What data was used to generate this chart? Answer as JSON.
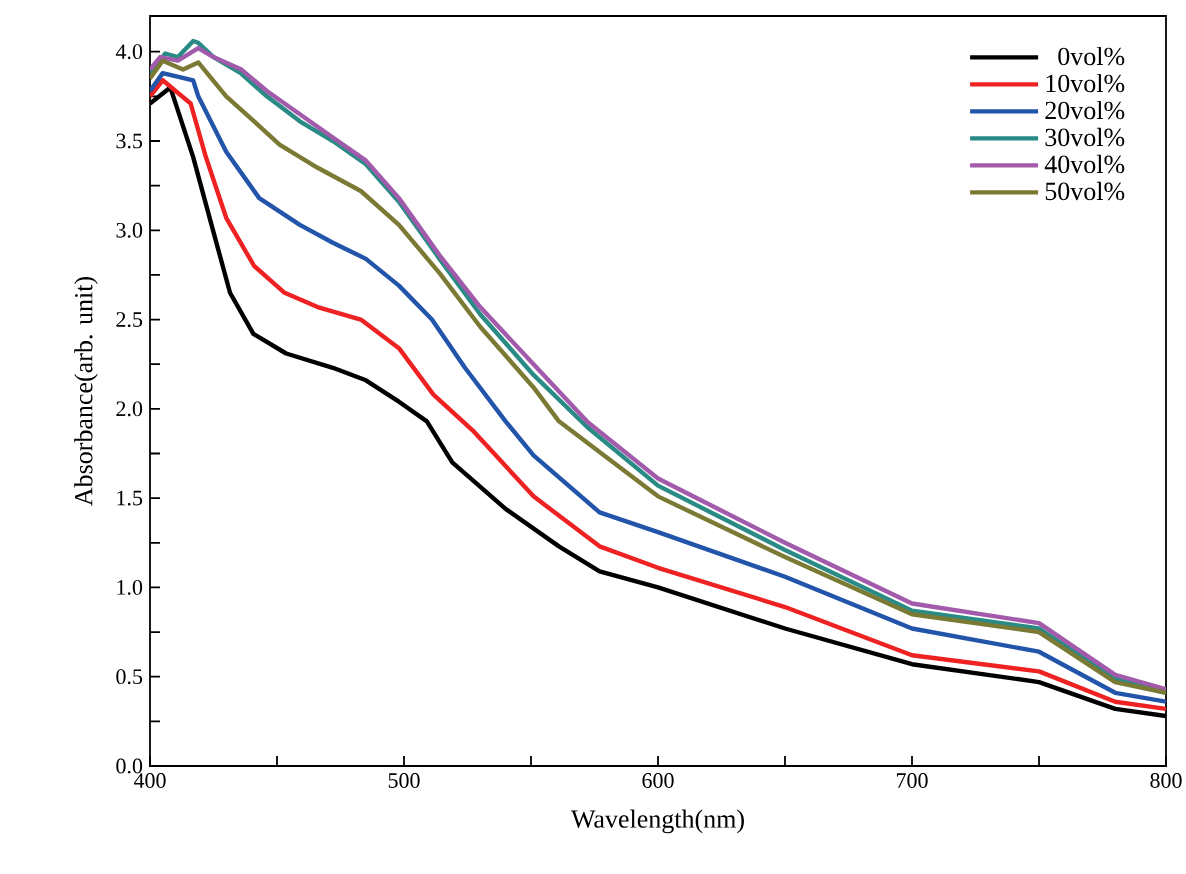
{
  "chart_data": {
    "type": "line",
    "xlabel": "Wavelength(nm)",
    "ylabel": "Absorbance(arb. unit)",
    "xlim": [
      400,
      800
    ],
    "ylim": [
      0,
      4.2
    ],
    "xticks": [
      400,
      {
        "value": 450,
        "label": null
      },
      500,
      {
        "value": 550,
        "label": null
      },
      600,
      {
        "value": 650,
        "label": null
      },
      700,
      {
        "value": 750,
        "label": null
      },
      800
    ],
    "yticks": [
      {
        "value": 0,
        "label": "0.0"
      },
      {
        "value": 0.25,
        "label": null
      },
      {
        "value": 0.5,
        "label": "0.5"
      },
      {
        "value": 0.75,
        "label": null
      },
      {
        "value": 1,
        "label": "1.0"
      },
      {
        "value": 1.25,
        "label": null
      },
      {
        "value": 1.5,
        "label": "1.5"
      },
      {
        "value": 1.75,
        "label": null
      },
      {
        "value": 2,
        "label": "2.0"
      },
      {
        "value": 2.25,
        "label": null
      },
      {
        "value": 2.5,
        "label": "2.5"
      },
      {
        "value": 2.75,
        "label": null
      },
      {
        "value": 3,
        "label": "3.0"
      },
      {
        "value": 3.25,
        "label": null
      },
      {
        "value": 3.5,
        "label": "3.5"
      },
      {
        "value": 3.75,
        "label": null
      },
      {
        "value": 4,
        "label": "4.0"
      }
    ],
    "grid": false,
    "legend": "top right",
    "marker": "none",
    "line_style": "solid",
    "series": [
      {
        "name": "0vol%",
        "color": "#000000",
        "x": [
          400,
          408,
          417,
          425,
          431.5,
          440.7,
          453.6,
          472,
          485,
          498,
          509,
          519,
          540,
          561,
          577,
          600,
          650,
          700,
          750,
          780,
          800
        ],
        "values": [
          3.71,
          3.8,
          3.41,
          2.99,
          2.65,
          2.42,
          2.31,
          2.23,
          2.16,
          2.04,
          1.93,
          1.7,
          1.44,
          1.23,
          1.09,
          1.0,
          0.77,
          0.57,
          0.47,
          0.32,
          0.28
        ]
      },
      {
        "name": "10vol%",
        "color": "#ee2222",
        "x": [
          400,
          405,
          416,
          422,
          430,
          441,
          453,
          466,
          483,
          498,
          511.6,
          527,
          551,
          577,
          600,
          650,
          700,
          750,
          780,
          800
        ],
        "values": [
          3.75,
          3.84,
          3.71,
          3.41,
          3.07,
          2.8,
          2.65,
          2.57,
          2.5,
          2.34,
          2.08,
          1.88,
          1.51,
          1.23,
          1.11,
          0.89,
          0.62,
          0.53,
          0.36,
          0.32
        ]
      },
      {
        "name": "20vol%",
        "color": "#2255aa",
        "x": [
          400,
          405,
          417,
          419,
          430,
          443,
          459,
          472,
          485,
          498,
          511,
          524,
          540,
          551,
          577,
          600,
          650,
          700,
          750,
          780,
          800
        ],
        "values": [
          3.78,
          3.88,
          3.84,
          3.75,
          3.44,
          3.18,
          3.03,
          2.93,
          2.84,
          2.69,
          2.5,
          2.23,
          1.93,
          1.74,
          1.42,
          1.31,
          1.06,
          0.77,
          0.64,
          0.41,
          0.36
        ]
      },
      {
        "name": "30vol%",
        "color": "#2a8a85",
        "x": [
          400,
          406,
          411,
          417,
          419,
          425,
          435.7,
          446,
          459,
          472,
          485,
          498,
          514,
          530,
          551,
          572,
          600,
          650,
          700,
          750,
          780,
          800
        ],
        "values": [
          3.88,
          3.99,
          3.97,
          4.06,
          4.05,
          3.97,
          3.88,
          3.75,
          3.61,
          3.5,
          3.37,
          3.16,
          2.84,
          2.53,
          2.19,
          1.9,
          1.57,
          1.21,
          0.87,
          0.77,
          0.49,
          0.41
        ]
      },
      {
        "name": "40vol%",
        "color": "#a25aab",
        "x": [
          400,
          404,
          411,
          419,
          425,
          436,
          446,
          459,
          472,
          485,
          498,
          514,
          530,
          551,
          572,
          600,
          650,
          700,
          750,
          780,
          800
        ],
        "values": [
          3.9,
          3.97,
          3.95,
          4.02,
          3.97,
          3.9,
          3.78,
          3.65,
          3.52,
          3.39,
          3.18,
          2.86,
          2.57,
          2.25,
          1.93,
          1.61,
          1.25,
          0.91,
          0.8,
          0.51,
          0.43
        ]
      },
      {
        "name": "50vol%",
        "color": "#7b7a35",
        "x": [
          400,
          405,
          413,
          419,
          430,
          441,
          451,
          466,
          483,
          498,
          514,
          530,
          551,
          561,
          600,
          650,
          700,
          750,
          780,
          800
        ],
        "values": [
          3.85,
          3.95,
          3.9,
          3.94,
          3.75,
          3.61,
          3.48,
          3.35,
          3.22,
          3.03,
          2.76,
          2.46,
          2.12,
          1.93,
          1.51,
          1.17,
          0.85,
          0.75,
          0.47,
          0.41
        ]
      }
    ]
  }
}
